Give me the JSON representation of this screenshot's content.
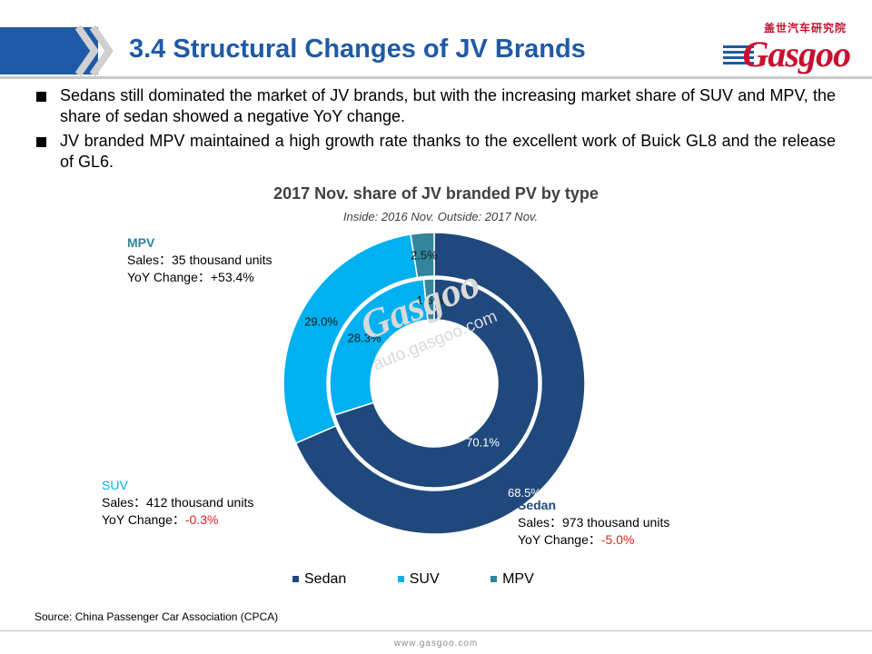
{
  "header": {
    "title": "3.4 Structural Changes of JV Brands",
    "logo_cn": "盖世汽车研究院",
    "logo_word": "Gasgoo"
  },
  "bullets": [
    "Sedans still dominated the market of JV brands, but with the increasing market share of SUV and MPV, the share of sedan showed a negative YoY change.",
    "JV branded MPV maintained a high growth rate thanks to the excellent work of Buick GL8 and the release of GL6."
  ],
  "watermark": {
    "word": "Gasgoo",
    "url": "auto.gasgoo.com"
  },
  "callouts": {
    "mpv": {
      "name": "MPV",
      "sales": "Sales：35 thousand units",
      "yoy_label": "YoY Change：",
      "yoy_value": "+53.4%"
    },
    "suv": {
      "name": "SUV",
      "sales": "Sales：412 thousand units",
      "yoy_label": "YoY Change：",
      "yoy_value": "-0.3%"
    },
    "sedan": {
      "name": "Sedan",
      "sales": "Sales：973 thousand units",
      "yoy_label": "YoY Change：",
      "yoy_value": "-5.0%"
    }
  },
  "chart_data": {
    "type": "pie",
    "variant": "nested-donut",
    "title": "2017 Nov. share of JV branded PV by type",
    "subtitle": "Inside: 2016 Nov.  Outside: 2017 Nov.",
    "categories": [
      "Sedan",
      "SUV",
      "MPV"
    ],
    "colors": [
      "#1f497d",
      "#00b0f0",
      "#31859c"
    ],
    "series": [
      {
        "ring": "inner",
        "values": [
          70.1,
          28.3,
          1.6
        ],
        "labels": [
          "70.1%",
          "28.3%",
          "1.6%"
        ]
      },
      {
        "ring": "outer",
        "values": [
          68.5,
          29.0,
          2.5
        ],
        "labels": [
          "68.5%",
          "29.0%",
          "2.5%"
        ]
      }
    ],
    "legend_position": "bottom"
  },
  "source": "Source: China Passenger Car Association (CPCA)",
  "footer_url": "www.gasgoo.com"
}
